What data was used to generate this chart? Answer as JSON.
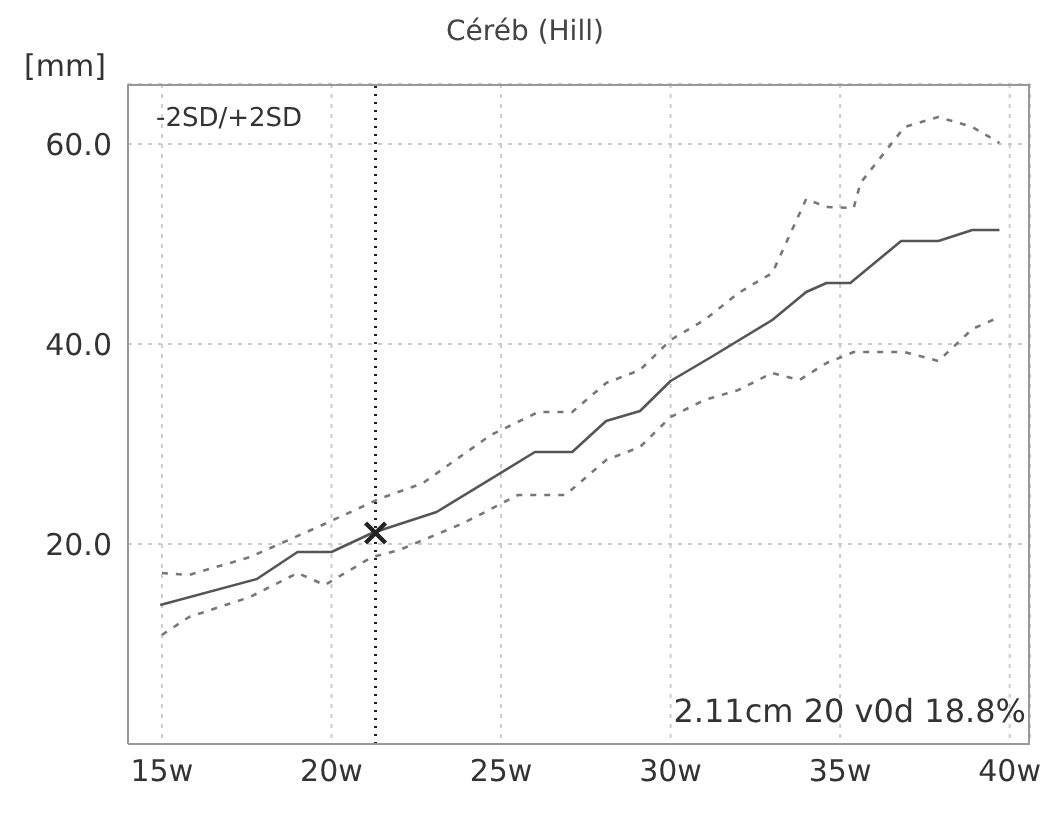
{
  "chart_data": {
    "type": "line",
    "title": "Céréb (Hill)",
    "ylabel": "[mm]",
    "xlim": [
      14,
      40.6
    ],
    "ylim": [
      0,
      66
    ],
    "xticks": [
      {
        "value": 15,
        "label": "15w"
      },
      {
        "value": 20,
        "label": "20w"
      },
      {
        "value": 25,
        "label": "25w"
      },
      {
        "value": 30,
        "label": "30w"
      },
      {
        "value": 35,
        "label": "35w"
      },
      {
        "value": 40,
        "label": "40w"
      }
    ],
    "yticks": [
      {
        "value": 20,
        "label": "20.0"
      },
      {
        "value": 40,
        "label": "40.0"
      },
      {
        "value": 60,
        "label": "60.0"
      }
    ],
    "grid": true,
    "annotations": [
      "-2SD/+2SD",
      "2.11cm 20 v0d 18.8%"
    ],
    "ref_lines": [
      {
        "axis": "x",
        "value": 21.3,
        "color": "#222222",
        "line_style": "dotted"
      }
    ],
    "series": [
      {
        "color": "#555555",
        "line_style": "solid",
        "marker": "none",
        "x": [
          14.95,
          17.8,
          19.0,
          20.0,
          21.2,
          23.1,
          26.0,
          27.1,
          28.1,
          29.1,
          30.0,
          31.2,
          33.0,
          34.0,
          34.6,
          35.3,
          36.8,
          37.9,
          38.9,
          39.7
        ],
        "values": [
          13.9,
          16.5,
          19.2,
          19.2,
          21.1,
          23.2,
          29.2,
          29.2,
          32.3,
          33.3,
          36.3,
          38.7,
          42.4,
          45.2,
          46.1,
          46.1,
          50.3,
          50.3,
          51.4,
          51.4
        ]
      },
      {
        "color": "#777777",
        "line_style": "dashed",
        "marker": "none",
        "x": [
          15.0,
          15.8,
          17.6,
          19.6,
          21.4,
          22.7,
          24.7,
          26.1,
          27.1,
          28.1,
          29.1,
          30.0,
          31.0,
          32.0,
          33.0,
          34.0,
          34.6,
          35.4,
          35.6,
          36.9,
          37.9,
          38.9,
          39.7
        ],
        "values": [
          17.1,
          16.9,
          18.7,
          21.7,
          24.5,
          26.1,
          30.9,
          33.2,
          33.2,
          36.1,
          37.4,
          40.4,
          42.4,
          45.1,
          47.1,
          54.5,
          53.7,
          53.6,
          56.1,
          61.7,
          62.7,
          61.7,
          60.1
        ]
      },
      {
        "color": "#777777",
        "line_style": "dashed",
        "marker": "none",
        "x": [
          15.0,
          15.8,
          17.6,
          19.0,
          19.8,
          21.2,
          22.0,
          23.9,
          25.5,
          26.9,
          28.1,
          29.1,
          30.0,
          31.0,
          32.0,
          33.0,
          33.8,
          34.6,
          35.4,
          36.9,
          37.9,
          38.9,
          39.7
        ],
        "values": [
          10.9,
          12.7,
          14.7,
          17.1,
          15.9,
          18.7,
          19.4,
          22.1,
          24.9,
          24.9,
          28.4,
          29.7,
          32.7,
          34.4,
          35.4,
          37.1,
          36.4,
          38.1,
          39.2,
          39.2,
          38.3,
          41.5,
          42.7
        ]
      },
      {
        "type": "scatter",
        "color": "#222222",
        "marker": "cross",
        "x": [
          21.3
        ],
        "values": [
          21.1
        ]
      }
    ]
  }
}
